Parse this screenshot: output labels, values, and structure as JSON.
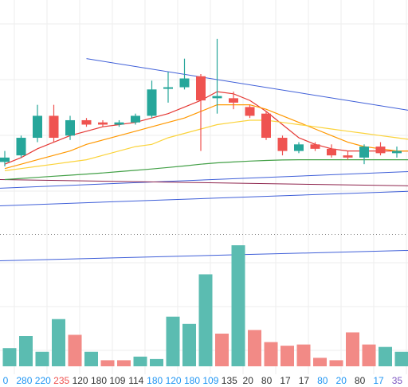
{
  "colors": {
    "up": "#26a69a",
    "down": "#ef5350",
    "vol_up": "#5bbcb1",
    "vol_down": "#f28a86",
    "grid": "#eeeeee",
    "ma5": "#e53935",
    "ma10": "#ff9800",
    "ma20": "#fbd33b",
    "ma60": "#43a047",
    "trend_blue": "#3f5fd8",
    "trend_purple": "#8e244d",
    "dotted": "#8a8a8a",
    "label_blue": "#2196f3",
    "label_red": "#ef5350",
    "label_dark": "#333333",
    "label_purple": "#7e57c2"
  },
  "chart_data": {
    "type": "candlestick",
    "price_ylim": [
      0,
      100
    ],
    "volume_ylim": [
      0,
      100
    ],
    "candles": [
      {
        "o": 35,
        "c": 37,
        "h": 40,
        "l": 33
      },
      {
        "o": 38,
        "c": 46,
        "h": 47,
        "l": 37
      },
      {
        "o": 46,
        "c": 56,
        "h": 61,
        "l": 44
      },
      {
        "o": 56,
        "c": 46,
        "h": 61,
        "l": 44
      },
      {
        "o": 47,
        "c": 54,
        "h": 56,
        "l": 45
      },
      {
        "o": 54,
        "c": 52,
        "h": 55,
        "l": 51
      },
      {
        "o": 53,
        "c": 52,
        "h": 54,
        "l": 51
      },
      {
        "o": 52,
        "c": 53,
        "h": 54,
        "l": 51
      },
      {
        "o": 53,
        "c": 56,
        "h": 57,
        "l": 52
      },
      {
        "o": 56,
        "c": 68,
        "h": 72,
        "l": 55
      },
      {
        "o": 69,
        "c": 69,
        "h": 76,
        "l": 62
      },
      {
        "o": 69,
        "c": 73,
        "h": 82,
        "l": 68
      },
      {
        "o": 74,
        "c": 63,
        "h": 75,
        "l": 40
      },
      {
        "o": 64,
        "c": 65,
        "h": 91,
        "l": 57
      },
      {
        "o": 64,
        "c": 62,
        "h": 67,
        "l": 59
      },
      {
        "o": 60,
        "c": 56,
        "h": 61,
        "l": 55
      },
      {
        "o": 57,
        "c": 46,
        "h": 58,
        "l": 45
      },
      {
        "o": 46,
        "c": 40,
        "h": 47,
        "l": 38
      },
      {
        "o": 40,
        "c": 43,
        "h": 44,
        "l": 39
      },
      {
        "o": 43,
        "c": 41,
        "h": 44,
        "l": 40
      },
      {
        "o": 41,
        "c": 38,
        "h": 43,
        "l": 37
      },
      {
        "o": 38,
        "c": 37,
        "h": 40,
        "l": 36
      },
      {
        "o": 37,
        "c": 42,
        "h": 43,
        "l": 34
      },
      {
        "o": 42,
        "c": 39,
        "h": 44,
        "l": 38
      },
      {
        "o": 39,
        "c": 40,
        "h": 42,
        "l": 37
      },
      {
        "o": 40,
        "c": 41,
        "h": 42,
        "l": 39
      }
    ],
    "moving_averages": [
      {
        "color_key": "ma5",
        "values": [
          34,
          37,
          41,
          44,
          47,
          49,
          51,
          52,
          53,
          55,
          57,
          60,
          63,
          67,
          66,
          63,
          58,
          52,
          46,
          43,
          41,
          40,
          40,
          40,
          40,
          40
        ]
      },
      {
        "color_key": "ma10",
        "values": [
          32,
          34,
          36,
          38,
          40,
          43,
          45,
          47,
          49,
          51,
          53,
          55,
          58,
          61,
          61,
          61,
          59,
          56,
          53,
          50,
          47,
          44,
          42,
          41,
          40,
          40
        ]
      },
      {
        "color_key": "ma20",
        "values": [
          31,
          32,
          33,
          34,
          35,
          36,
          38,
          40,
          42,
          43,
          46,
          48,
          50,
          52,
          53,
          54,
          54,
          53,
          52,
          51,
          50,
          49,
          48,
          47,
          46,
          45
        ]
      },
      {
        "color_key": "ma60",
        "values": [
          27,
          27.5,
          28,
          28.5,
          29,
          29.5,
          30,
          30.6,
          31.2,
          31.8,
          32.5,
          33.2,
          34,
          34.6,
          35,
          35.4,
          35.7,
          35.9,
          36,
          36,
          36,
          36,
          36,
          36,
          36,
          36
        ]
      }
    ],
    "trendlines": [
      {
        "color_key": "trend_blue",
        "from": [
          5.0,
          82
        ],
        "to": [
          26.0,
          57
        ]
      },
      {
        "color_key": "trend_blue",
        "from": [
          -0.5,
          23
        ],
        "to": [
          26.0,
          31
        ]
      },
      {
        "color_key": "trend_blue",
        "from": [
          -0.5,
          15
        ],
        "to": [
          26.0,
          22
        ]
      },
      {
        "color_key": "trend_blue",
        "from": [
          -0.5,
          -10
        ],
        "to": [
          26.0,
          -5
        ]
      },
      {
        "color_key": "trend_purple",
        "from": [
          -0.5,
          27
        ],
        "to": [
          26.0,
          24
        ]
      }
    ],
    "dotted_level": 2,
    "volumes": [
      {
        "v": 15,
        "up": true
      },
      {
        "v": 25,
        "up": true
      },
      {
        "v": 12,
        "up": true
      },
      {
        "v": 39,
        "up": true
      },
      {
        "v": 26,
        "up": false
      },
      {
        "v": 12,
        "up": true
      },
      {
        "v": 5,
        "up": false
      },
      {
        "v": 5,
        "up": false
      },
      {
        "v": 8,
        "up": true
      },
      {
        "v": 6,
        "up": true
      },
      {
        "v": 41,
        "up": true
      },
      {
        "v": 35,
        "up": true
      },
      {
        "v": 76,
        "up": true
      },
      {
        "v": 27,
        "up": false
      },
      {
        "v": 100,
        "up": true
      },
      {
        "v": 30,
        "up": false
      },
      {
        "v": 20,
        "up": false
      },
      {
        "v": 17,
        "up": false
      },
      {
        "v": 18,
        "up": false
      },
      {
        "v": 7,
        "up": false
      },
      {
        "v": 5,
        "up": false
      },
      {
        "v": 28,
        "up": false
      },
      {
        "v": 18,
        "up": false
      },
      {
        "v": 16,
        "up": true
      },
      {
        "v": 12,
        "up": true
      },
      {
        "v": 11,
        "up": true
      }
    ],
    "volume_labels": [
      {
        "text": "0",
        "color_key": "label_blue"
      },
      {
        "text": "280",
        "color_key": "label_blue"
      },
      {
        "text": "220",
        "color_key": "label_blue"
      },
      {
        "text": "235",
        "color_key": "label_red"
      },
      {
        "text": "120",
        "color_key": "label_dark"
      },
      {
        "text": "180",
        "color_key": "label_dark"
      },
      {
        "text": "109",
        "color_key": "label_dark"
      },
      {
        "text": "114",
        "color_key": "label_dark"
      },
      {
        "text": "180",
        "color_key": "label_blue"
      },
      {
        "text": "120",
        "color_key": "label_blue"
      },
      {
        "text": "180",
        "color_key": "label_blue"
      },
      {
        "text": "109",
        "color_key": "label_blue"
      },
      {
        "text": "135",
        "color_key": "label_dark"
      },
      {
        "text": "20",
        "color_key": "label_dark"
      },
      {
        "text": "80",
        "color_key": "label_dark"
      },
      {
        "text": "17",
        "color_key": "label_dark"
      },
      {
        "text": "17",
        "color_key": "label_dark"
      },
      {
        "text": "80",
        "color_key": "label_blue"
      },
      {
        "text": "20",
        "color_key": "label_blue"
      },
      {
        "text": "80",
        "color_key": "label_dark"
      },
      {
        "text": "17",
        "color_key": "label_blue"
      },
      {
        "text": "35",
        "color_key": "label_purple"
      }
    ]
  }
}
